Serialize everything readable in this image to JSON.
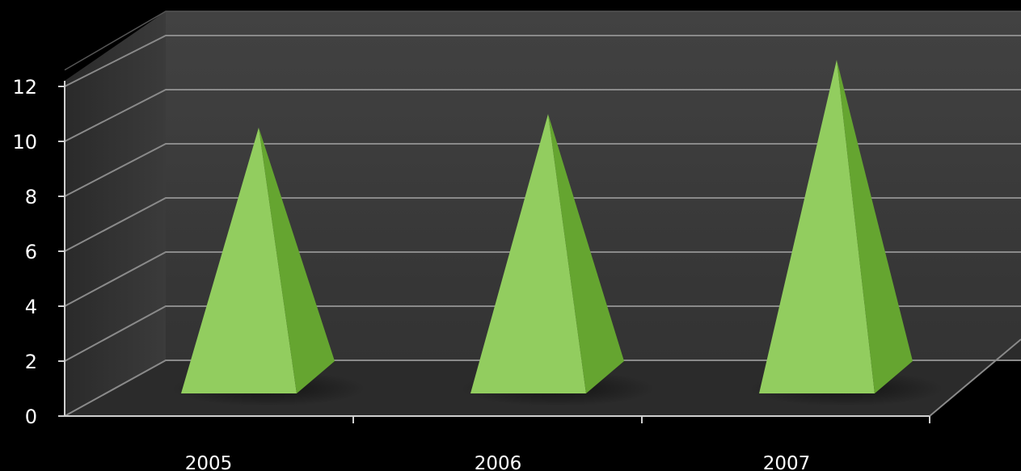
{
  "chart_data": {
    "type": "bar",
    "style": "3d-pyramid",
    "categories": [
      "2005",
      "2006",
      "2007"
    ],
    "values": [
      8.6,
      9.1,
      11.1
    ],
    "ylim": [
      0,
      12
    ],
    "yticks": [
      "0",
      "2",
      "4",
      "6",
      "8",
      "10",
      "12"
    ],
    "title": "",
    "xlabel": "",
    "ylabel": "",
    "grid": true,
    "legend": "none",
    "colors": {
      "background": "#000000",
      "wall": "#3a3a3a",
      "floor": "#2b2b2b",
      "grid": "#8a8a8a",
      "pyramid_front": "#92cd5f",
      "pyramid_side": "#65a530",
      "axis": "#cfcfcf",
      "text": "#ffffff"
    }
  }
}
